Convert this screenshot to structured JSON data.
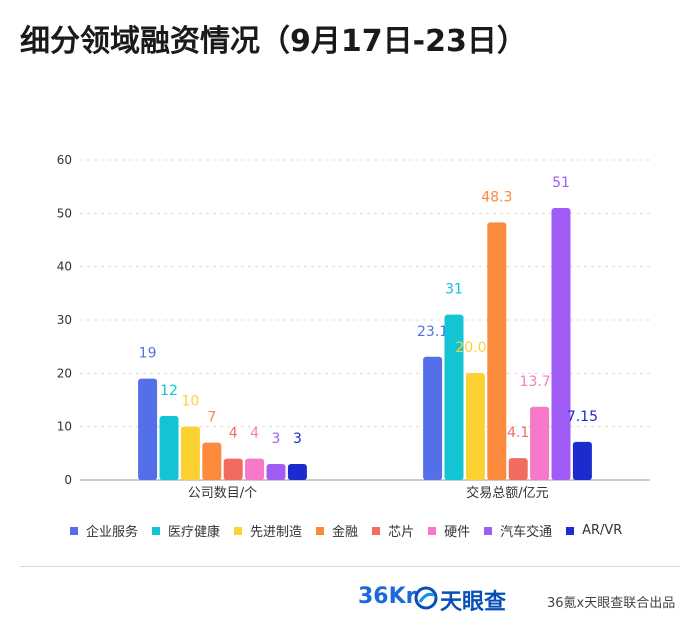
{
  "title": "细分领域融资情况（9月17日-23日）",
  "chart_data": {
    "type": "bar",
    "categories": [
      "公司数目/个",
      "交易总额/亿元"
    ],
    "series": [
      {
        "name": "企业服务",
        "color": "#5470e8",
        "values": [
          19,
          23.1
        ]
      },
      {
        "name": "医疗健康",
        "color": "#12c4d4",
        "values": [
          12,
          31
        ]
      },
      {
        "name": "先进制造",
        "color": "#fbd231",
        "values": [
          10,
          20.07
        ]
      },
      {
        "name": "金融",
        "color": "#fc8a3c",
        "values": [
          7,
          48.3
        ]
      },
      {
        "name": "芯片",
        "color": "#f26b60",
        "values": [
          4,
          4.1
        ]
      },
      {
        "name": "硬件",
        "color": "#f777c8",
        "values": [
          4,
          13.73
        ]
      },
      {
        "name": "汽车交通",
        "color": "#a15cf5",
        "values": [
          3,
          51
        ]
      },
      {
        "name": "AR/VR",
        "color": "#1a2ccc",
        "values": [
          3,
          7.15
        ]
      }
    ],
    "value_labels": [
      [
        "19",
        "23.1"
      ],
      [
        "12",
        "31"
      ],
      [
        "10",
        "20.07"
      ],
      [
        "7",
        "48.3"
      ],
      [
        "4",
        "4.1"
      ],
      [
        "4",
        "13.73"
      ],
      [
        "3",
        "51"
      ],
      [
        "3",
        "7.15"
      ]
    ],
    "yticks": [
      "0",
      "10",
      "20",
      "30",
      "40",
      "50",
      "60"
    ],
    "ylim": [
      0,
      60
    ],
    "grid": true,
    "legend_position": "bottom"
  },
  "footer": {
    "logo_36kr": "36Kr",
    "logo_tyc": "天眼查",
    "tyc_icon": "tianyancha-icon",
    "source": "36氪x天眼查联合出品"
  }
}
